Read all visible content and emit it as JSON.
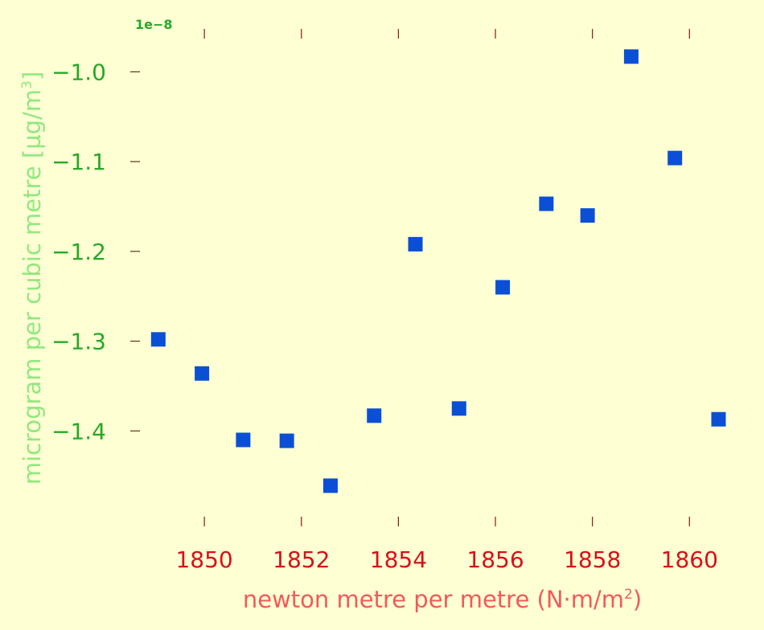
{
  "chart_data": {
    "type": "scatter",
    "x": [
      1849.05,
      1849.95,
      1850.8,
      1851.7,
      1852.6,
      1853.5,
      1854.35,
      1855.25,
      1856.15,
      1857.05,
      1857.9,
      1858.8,
      1859.7,
      1860.6
    ],
    "y": [
      -1.298,
      -1.336,
      -1.41,
      -1.411,
      -1.461,
      -1.383,
      -1.192,
      -1.375,
      -1.24,
      -1.147,
      -1.16,
      -0.983,
      -1.096,
      -1.387
    ],
    "xlabel_pre": "newton metre per metre (N·m/m",
    "xlabel_sup": "2",
    "xlabel_post": ")",
    "ylabel_pre": "microgram per cubic metre [µg/m",
    "ylabel_sup": "3",
    "ylabel_post": "]",
    "y_offset_text": "1e−8",
    "xticks": [
      1850,
      1852,
      1854,
      1856,
      1858,
      1860
    ],
    "xtick_labels": [
      "1850",
      "1852",
      "1854",
      "1856",
      "1858",
      "1860"
    ],
    "yticks": [
      -1.0,
      -1.1,
      -1.2,
      -1.3,
      -1.4
    ],
    "ytick_labels": [
      "−1.0",
      "−1.1",
      "−1.2",
      "−1.3",
      "−1.4"
    ],
    "xlim": [
      1848.97,
      1860.99
    ],
    "ylim": [
      -1.5,
      -0.954
    ],
    "grid": false,
    "colors": {
      "background": "#ffffd4",
      "marker": "#0a4fd6",
      "x_tick_text": "#d4121a",
      "x_label_text": "#f25a5a",
      "y_tick_text": "#28a828",
      "y_label_text": "#90e880",
      "offset_text": "#28a828",
      "x_tick_mark": "#8b1a10",
      "y_tick_mark": "#5a3a10"
    }
  }
}
